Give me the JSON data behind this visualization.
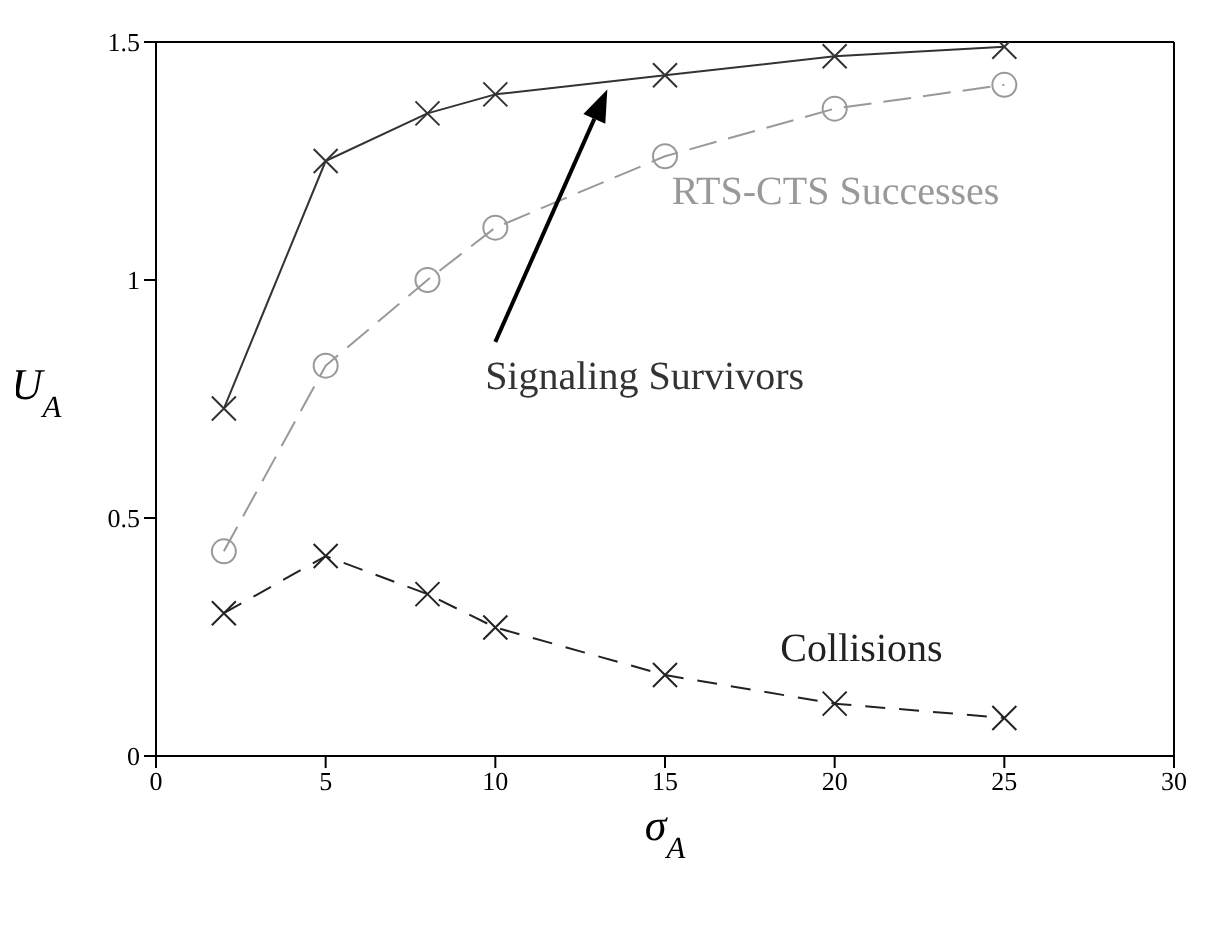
{
  "chart_data": {
    "type": "line",
    "xlabel": "σ$_{A}$",
    "ylabel": "U$_{A}$",
    "xlim": [
      0,
      30
    ],
    "xticks": [
      0,
      5,
      10,
      15,
      20,
      25,
      30
    ],
    "ylim": [
      0,
      1.5
    ],
    "yticks": [
      0,
      0.5,
      1,
      1.5
    ],
    "legend": false,
    "series": [
      {
        "name": "Signaling Survivors",
        "color": "#333333",
        "marker": "cross",
        "line_style": "solid",
        "x": [
          2,
          5,
          8,
          10,
          15,
          20,
          25
        ],
        "values": [
          0.73,
          1.25,
          1.35,
          1.39,
          1.43,
          1.47,
          1.49
        ]
      },
      {
        "name": "RTS-CTS Successes",
        "color": "#999999",
        "marker": "circle",
        "line_style": "dashed",
        "x": [
          2,
          5,
          8,
          10,
          15,
          20,
          25
        ],
        "values": [
          0.43,
          0.82,
          1.0,
          1.11,
          1.26,
          1.36,
          1.41
        ]
      },
      {
        "name": "Collisions",
        "color": "#222222",
        "marker": "cross",
        "line_style": "dashed",
        "x": [
          2,
          5,
          8,
          10,
          15,
          20,
          25
        ],
        "values": [
          0.3,
          0.42,
          0.34,
          0.27,
          0.17,
          0.11,
          0.08
        ]
      }
    ]
  }
}
